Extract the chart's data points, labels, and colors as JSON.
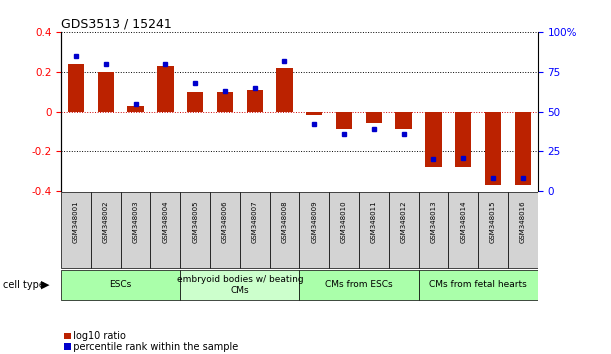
{
  "title": "GDS3513 / 15241",
  "samples": [
    "GSM348001",
    "GSM348002",
    "GSM348003",
    "GSM348004",
    "GSM348005",
    "GSM348006",
    "GSM348007",
    "GSM348008",
    "GSM348009",
    "GSM348010",
    "GSM348011",
    "GSM348012",
    "GSM348013",
    "GSM348014",
    "GSM348015",
    "GSM348016"
  ],
  "log10_ratio": [
    0.24,
    0.2,
    0.03,
    0.23,
    0.1,
    0.1,
    0.11,
    0.22,
    -0.02,
    -0.09,
    -0.06,
    -0.09,
    -0.28,
    -0.28,
    -0.37,
    -0.37
  ],
  "percentile_rank": [
    85,
    80,
    55,
    80,
    68,
    63,
    65,
    82,
    42,
    36,
    39,
    36,
    20,
    21,
    8,
    8
  ],
  "cell_groups": [
    {
      "label": "ESCs",
      "start": 0,
      "end": 3,
      "color": "#aaffaa"
    },
    {
      "label": "embryoid bodies w/ beating\nCMs",
      "start": 4,
      "end": 7,
      "color": "#ccffcc"
    },
    {
      "label": "CMs from ESCs",
      "start": 8,
      "end": 11,
      "color": "#aaffaa"
    },
    {
      "label": "CMs from fetal hearts",
      "start": 12,
      "end": 15,
      "color": "#aaffaa"
    }
  ],
  "ylim_left": [
    -0.4,
    0.4
  ],
  "ylim_right": [
    0,
    100
  ],
  "yticks_left": [
    -0.4,
    -0.2,
    0.0,
    0.2,
    0.4
  ],
  "yticks_right": [
    0,
    25,
    50,
    75,
    100
  ],
  "bar_color_red": "#bb2200",
  "bar_color_blue": "#0000cc",
  "hline_red": "#cc0000",
  "hline_black": "#000000",
  "sample_box_color": "#d3d3d3",
  "legend_red_label": "log10 ratio",
  "legend_blue_label": "percentile rank within the sample",
  "cell_type_label": "cell type"
}
